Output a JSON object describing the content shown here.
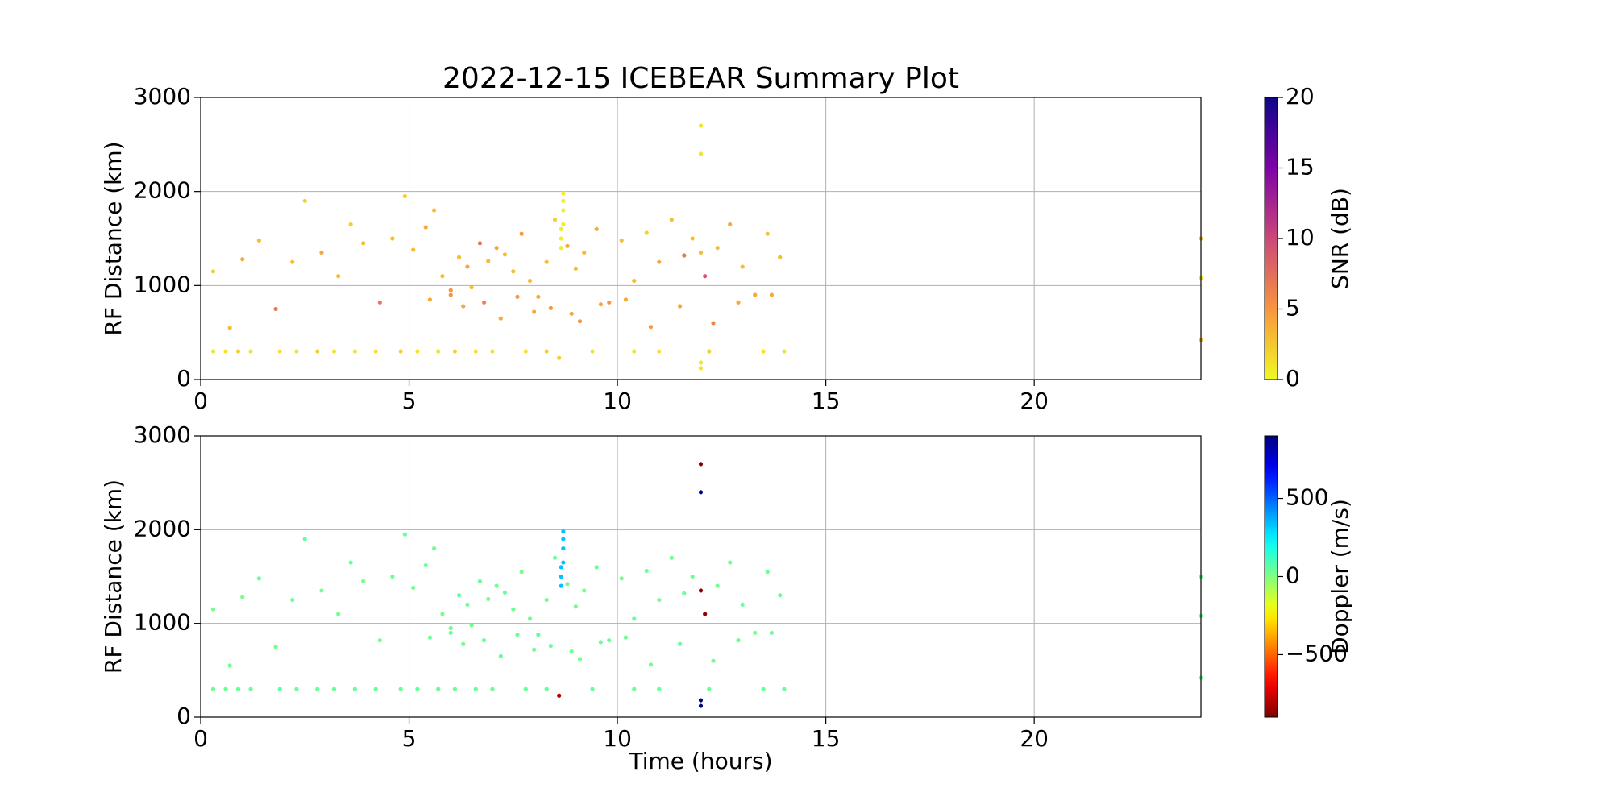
{
  "chart_data": [
    {
      "type": "scatter",
      "title": "2022-12-15 ICEBEAR Summary Plot",
      "ylabel": "RF Distance (km)",
      "xlim": [
        0,
        24
      ],
      "ylim": [
        0,
        3000
      ],
      "xticks": [
        0,
        5,
        10,
        15,
        20
      ],
      "yticks": [
        0,
        1000,
        2000,
        3000
      ],
      "grid": true,
      "colorbar": {
        "label": "SNR (dB)",
        "colormap": "plasma_r",
        "lim": [
          0,
          20
        ],
        "ticks": [
          0,
          5,
          10,
          15,
          20
        ]
      },
      "x": [
        0.3,
        0.6,
        0.9,
        1.2,
        1.9,
        2.3,
        2.8,
        3.2,
        3.7,
        4.2,
        4.8,
        5.2,
        5.7,
        6.1,
        6.6,
        7.0,
        7.8,
        8.3,
        9.4,
        10.4,
        11.0,
        12.2,
        13.5,
        14.0,
        0.3,
        0.7,
        1.0,
        1.4,
        1.8,
        2.2,
        2.5,
        2.9,
        3.3,
        3.6,
        3.9,
        4.3,
        4.6,
        4.9,
        5.1,
        5.4,
        5.6,
        5.8,
        6.0,
        6.2,
        6.4,
        6.5,
        6.7,
        6.9,
        7.1,
        7.3,
        7.5,
        7.7,
        7.9,
        8.1,
        8.3,
        8.5,
        8.8,
        9.0,
        9.2,
        9.5,
        9.8,
        10.1,
        10.4,
        10.7,
        11.0,
        11.3,
        11.6,
        11.8,
        12.1,
        12.4,
        12.7,
        13.0,
        13.3,
        13.6,
        13.9,
        5.5,
        6.0,
        6.3,
        6.8,
        7.2,
        7.6,
        8.0,
        8.4,
        8.9,
        9.1,
        9.6,
        10.2,
        10.8,
        11.5,
        12.3,
        12.9,
        13.7,
        8.65,
        8.65,
        8.65,
        8.7,
        8.7,
        8.7,
        8.7,
        12.0,
        12.0,
        12.0,
        12.0,
        12.0,
        8.6,
        24.0,
        24.0,
        24.0
      ],
      "values": [
        300,
        300,
        300,
        300,
        300,
        300,
        300,
        300,
        300,
        300,
        300,
        300,
        300,
        300,
        300,
        300,
        300,
        300,
        300,
        300,
        300,
        300,
        300,
        300,
        1150,
        550,
        1280,
        1480,
        750,
        1250,
        1900,
        1350,
        1100,
        1650,
        1450,
        820,
        1500,
        1950,
        1380,
        1620,
        1800,
        1100,
        950,
        1300,
        1200,
        980,
        1450,
        1260,
        1400,
        1330,
        1150,
        1550,
        1050,
        880,
        1250,
        1700,
        1420,
        1180,
        1350,
        1600,
        820,
        1480,
        1050,
        1560,
        1250,
        1700,
        1320,
        1500,
        1100,
        1400,
        1650,
        1200,
        900,
        1550,
        1300,
        850,
        900,
        780,
        820,
        650,
        880,
        720,
        760,
        700,
        620,
        800,
        850,
        560,
        780,
        600,
        820,
        900,
        1400,
        1500,
        1600,
        1650,
        1800,
        1900,
        1980,
        2700,
        2400,
        180,
        120,
        1350,
        230,
        1500,
        1080,
        420
      ],
      "c_values": [
        1,
        1,
        2,
        1,
        1,
        1,
        2,
        1,
        1,
        1,
        2,
        1,
        1,
        2,
        1,
        1,
        1,
        2,
        1,
        1,
        1,
        2,
        1,
        1,
        2,
        3,
        4,
        3,
        7,
        3,
        2,
        4,
        3,
        2,
        3,
        7,
        3,
        2,
        3,
        4,
        3,
        3,
        5,
        3,
        4,
        3,
        7,
        3,
        4,
        3,
        3,
        5,
        3,
        4,
        3,
        2,
        4,
        3,
        3,
        4,
        5,
        3,
        3,
        2,
        4,
        3,
        7,
        3,
        9,
        3,
        4,
        3,
        4,
        3,
        3,
        4,
        5,
        4,
        6,
        4,
        5,
        4,
        5,
        4,
        5,
        4,
        4,
        5,
        4,
        6,
        4,
        4,
        0.5,
        0.5,
        0.5,
        0.5,
        0.5,
        0.5,
        0.5,
        1,
        1,
        1,
        1,
        3,
        2,
        3,
        1,
        3
      ]
    },
    {
      "type": "scatter",
      "xlabel": "Time (hours)",
      "ylabel": "RF Distance (km)",
      "xlim": [
        0,
        24
      ],
      "ylim": [
        0,
        3000
      ],
      "xticks": [
        0,
        5,
        10,
        15,
        20
      ],
      "yticks": [
        0,
        1000,
        2000,
        3000
      ],
      "grid": true,
      "colorbar": {
        "label": "Doppler (m/s)",
        "colormap": "jet_r",
        "lim": [
          -900,
          900
        ],
        "ticks": [
          {
            "value": -500,
            "label": "−500"
          },
          0,
          500
        ]
      },
      "x": [
        0.3,
        0.6,
        0.9,
        1.2,
        1.9,
        2.3,
        2.8,
        3.2,
        3.7,
        4.2,
        4.8,
        5.2,
        5.7,
        6.1,
        6.6,
        7.0,
        7.8,
        8.3,
        9.4,
        10.4,
        11.0,
        12.2,
        13.5,
        14.0,
        0.3,
        0.7,
        1.0,
        1.4,
        1.8,
        2.2,
        2.5,
        2.9,
        3.3,
        3.6,
        3.9,
        4.3,
        4.6,
        4.9,
        5.1,
        5.4,
        5.6,
        5.8,
        6.0,
        6.2,
        6.4,
        6.5,
        6.7,
        6.9,
        7.1,
        7.3,
        7.5,
        7.7,
        7.9,
        8.1,
        8.3,
        8.5,
        8.8,
        9.0,
        9.2,
        9.5,
        9.8,
        10.1,
        10.4,
        10.7,
        11.0,
        11.3,
        11.6,
        11.8,
        12.1,
        12.4,
        12.7,
        13.0,
        13.3,
        13.6,
        13.9,
        5.5,
        6.0,
        6.3,
        6.8,
        7.2,
        7.6,
        8.0,
        8.4,
        8.9,
        9.1,
        9.6,
        10.2,
        10.8,
        11.5,
        12.3,
        12.9,
        13.7,
        8.65,
        8.65,
        8.65,
        8.7,
        8.7,
        8.7,
        8.7,
        12.0,
        12.0,
        12.0,
        12.0,
        12.0,
        8.6,
        24.0,
        24.0,
        24.0
      ],
      "values": [
        300,
        300,
        300,
        300,
        300,
        300,
        300,
        300,
        300,
        300,
        300,
        300,
        300,
        300,
        300,
        300,
        300,
        300,
        300,
        300,
        300,
        300,
        300,
        300,
        1150,
        550,
        1280,
        1480,
        750,
        1250,
        1900,
        1350,
        1100,
        1650,
        1450,
        820,
        1500,
        1950,
        1380,
        1620,
        1800,
        1100,
        950,
        1300,
        1200,
        980,
        1450,
        1260,
        1400,
        1330,
        1150,
        1550,
        1050,
        880,
        1250,
        1700,
        1420,
        1180,
        1350,
        1600,
        820,
        1480,
        1050,
        1560,
        1250,
        1700,
        1320,
        1500,
        1100,
        1400,
        1650,
        1200,
        900,
        1550,
        1300,
        850,
        900,
        780,
        820,
        650,
        880,
        720,
        760,
        700,
        620,
        800,
        850,
        560,
        780,
        600,
        820,
        900,
        1400,
        1500,
        1600,
        1650,
        1800,
        1900,
        1980,
        2700,
        2400,
        180,
        120,
        1350,
        230,
        1500,
        1080,
        420
      ],
      "c_values": [
        40,
        40,
        40,
        40,
        60,
        40,
        40,
        40,
        40,
        40,
        40,
        40,
        40,
        40,
        40,
        40,
        40,
        40,
        40,
        40,
        40,
        40,
        40,
        40,
        20,
        30,
        10,
        40,
        20,
        30,
        50,
        20,
        30,
        40,
        20,
        10,
        30,
        50,
        20,
        40,
        30,
        20,
        30,
        40,
        20,
        30,
        40,
        20,
        30,
        40,
        30,
        20,
        30,
        40,
        20,
        30,
        40,
        30,
        20,
        40,
        30,
        20,
        40,
        30,
        20,
        30,
        40,
        30,
        -880,
        20,
        30,
        40,
        20,
        30,
        40,
        30,
        40,
        20,
        30,
        40,
        30,
        20,
        40,
        30,
        20,
        40,
        30,
        20,
        40,
        30,
        20,
        40,
        330,
        330,
        330,
        330,
        330,
        330,
        330,
        -880,
        880,
        880,
        880,
        -880,
        -820,
        40,
        40,
        40
      ]
    }
  ]
}
